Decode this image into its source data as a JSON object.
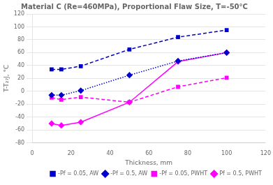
{
  "chart_data": {
    "type": "line",
    "title": "Material C (Re=460MPa), Proportional Flaw Size, T=-50°C",
    "x_label": "Thickness, mm",
    "y_label": "T-T₂₇J, °C",
    "xlim": [
      0,
      120
    ],
    "ylim": [
      -80,
      120
    ],
    "xticks": [
      0,
      20,
      40,
      60,
      80,
      100,
      120
    ],
    "yticks": [
      -80,
      -60,
      -40,
      -20,
      0,
      20,
      40,
      60,
      80,
      100,
      120
    ],
    "grid": "y",
    "legend": "lower right",
    "series": [
      {
        "name": "-Pf = 0.05, AW",
        "color": "#0000cc",
        "line_style": "dashed",
        "marker": "square",
        "x": [
          10,
          15,
          25,
          50,
          75,
          100
        ],
        "values": [
          34,
          34,
          39,
          65,
          84,
          95
        ]
      },
      {
        "name": "-Pf = 0.5, AW",
        "color": "#0000cc",
        "line_style": "dotted",
        "marker": "diamond",
        "x": [
          10,
          15,
          25,
          50,
          75,
          100
        ],
        "values": [
          -6,
          -6,
          1,
          25,
          47,
          60
        ]
      },
      {
        "name": "-Pf = 0.05, PWHT",
        "color": "#ff00ff",
        "line_style": "dashed",
        "marker": "square",
        "x": [
          10,
          15,
          25,
          50,
          75,
          100
        ],
        "values": [
          -10,
          -13,
          -9,
          -17,
          7,
          21
        ]
      },
      {
        "name": "Pf = 0.5, PWHT",
        "color": "#ff00ff",
        "line_style": "solid",
        "marker": "diamond",
        "x": [
          10,
          15,
          25,
          50,
          75,
          100
        ],
        "values": [
          -50,
          -53,
          -48,
          -17,
          46,
          60
        ]
      }
    ]
  }
}
